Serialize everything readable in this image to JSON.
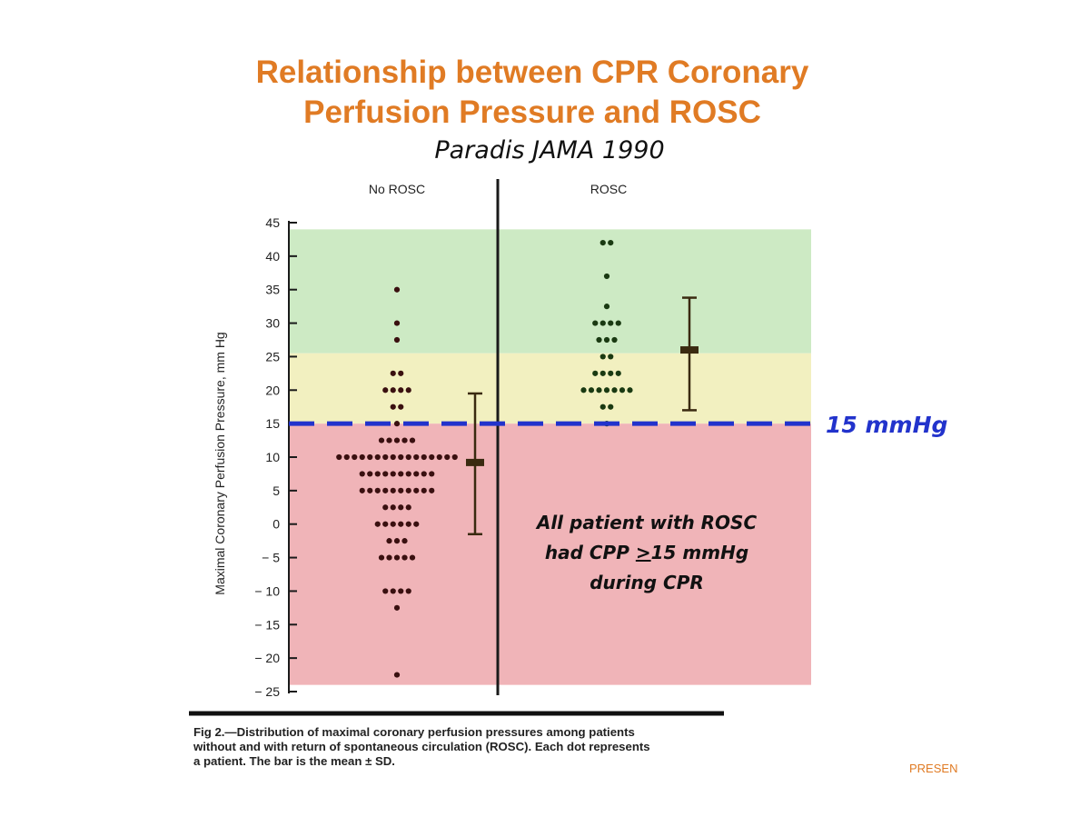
{
  "slide": {
    "title_line1": "Relationship between CPR Coronary",
    "title_line2": "Perfusion Pressure and ROSC",
    "subtitle": "Paradis JAMA 1990",
    "caption_line1": "Fig 2.—Distribution of maximal coronary perfusion pressures among patients",
    "caption_line2": "without and with return of spontaneous circulation (ROSC). Each dot represents",
    "caption_line3": "a patient. The bar is the mean ± SD.",
    "footer_text": "PRESEN"
  },
  "chart_data": {
    "type": "scatter",
    "title": "Relationship between CPR Coronary Perfusion Pressure and ROSC",
    "ylabel": "Maximal Coronary Perfusion Pressure, mm Hg",
    "xlabel": "",
    "ylim": [
      -25,
      45
    ],
    "yticks": [
      45,
      40,
      35,
      30,
      25,
      20,
      15,
      10,
      5,
      0,
      -5,
      -10,
      -15,
      -20,
      -25
    ],
    "ytick_labels": [
      "45",
      "40",
      "35",
      "30",
      "25",
      "20",
      "15",
      "10",
      "5",
      "0",
      "− 5",
      "− 10",
      "− 15",
      "− 20",
      "− 25"
    ],
    "groups": [
      "No ROSC",
      "ROSC"
    ],
    "threshold": {
      "value": 15,
      "label": "15 mmHg",
      "color": "#2233cc"
    },
    "zones": [
      {
        "name": "green",
        "from": 25.5,
        "to": 44,
        "color": "#cdeac4"
      },
      {
        "name": "yellow",
        "from": 15,
        "to": 25.5,
        "color": "#f2f0c0"
      },
      {
        "name": "red",
        "from": -24,
        "to": 15,
        "color": "#f0b4b8"
      }
    ],
    "annotation_lines": [
      "All patient with ROSC",
      "had CPP ",
      ">",
      "15 mmHg",
      "during CPR"
    ],
    "series": [
      {
        "name": "No ROSC",
        "rows": [
          {
            "value": 35,
            "count": 1
          },
          {
            "value": 30,
            "count": 1
          },
          {
            "value": 27.5,
            "count": 1
          },
          {
            "value": 22.5,
            "count": 2
          },
          {
            "value": 20,
            "count": 4
          },
          {
            "value": 17.5,
            "count": 2
          },
          {
            "value": 15,
            "count": 1
          },
          {
            "value": 12.5,
            "count": 5
          },
          {
            "value": 10,
            "count": 16
          },
          {
            "value": 7.5,
            "count": 10
          },
          {
            "value": 5,
            "count": 10
          },
          {
            "value": 2.5,
            "count": 4
          },
          {
            "value": 0,
            "count": 6
          },
          {
            "value": -2.5,
            "count": 3
          },
          {
            "value": -5,
            "count": 5
          },
          {
            "value": -10,
            "count": 4
          },
          {
            "value": -12.5,
            "count": 1
          },
          {
            "value": -22.5,
            "count": 1
          }
        ],
        "mean": 9.2,
        "sd_low": -1.5,
        "sd_high": 19.5
      },
      {
        "name": "ROSC",
        "rows": [
          {
            "value": 42,
            "count": 2
          },
          {
            "value": 37,
            "count": 1
          },
          {
            "value": 32.5,
            "count": 1
          },
          {
            "value": 30,
            "count": 4
          },
          {
            "value": 27.5,
            "count": 3
          },
          {
            "value": 25,
            "count": 2
          },
          {
            "value": 22.5,
            "count": 4
          },
          {
            "value": 20,
            "count": 7
          },
          {
            "value": 17.5,
            "count": 2
          },
          {
            "value": 15,
            "count": 1
          }
        ],
        "mean": 26,
        "sd_low": 17,
        "sd_high": 33.8
      }
    ]
  }
}
